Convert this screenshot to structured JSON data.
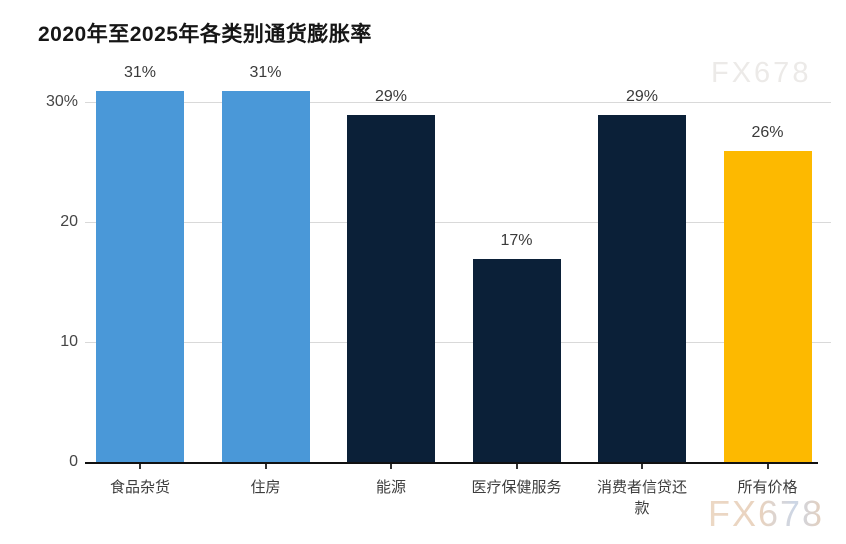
{
  "title": "2020年至2025年各类别通货膨胀率",
  "watermark": {
    "top_text": "FX678",
    "bottom_text": "FX678"
  },
  "colors": {
    "bar_blue": "#4a98d8",
    "bar_navy": "#0b2038",
    "bar_orange": "#fdb900",
    "gridline": "#d9d9d9",
    "axis": "#111111",
    "text": "#3d3d3d",
    "title": "#161616"
  },
  "chart_data": {
    "type": "bar",
    "title": "2020年至2025年各类别通货膨胀率",
    "categories": [
      "食品杂货",
      "住房",
      "能源",
      "医疗保健服务",
      "消费者信贷还款",
      "所有价格"
    ],
    "values": [
      31,
      31,
      29,
      17,
      29,
      26
    ],
    "value_labels": [
      "31%",
      "31%",
      "29%",
      "17%",
      "29%",
      "26%"
    ],
    "bar_colors": [
      "#4a98d8",
      "#4a98d8",
      "#0b2038",
      "#0b2038",
      "#0b2038",
      "#fdb900"
    ],
    "xlabel": "",
    "ylabel": "",
    "ylim": [
      0,
      30
    ],
    "yticks": [
      {
        "value": 0,
        "label": "0"
      },
      {
        "value": 10,
        "label": "10"
      },
      {
        "value": 20,
        "label": "20"
      },
      {
        "value": 30,
        "label": "30%"
      }
    ],
    "grid": "horizontal",
    "legend": "none"
  }
}
